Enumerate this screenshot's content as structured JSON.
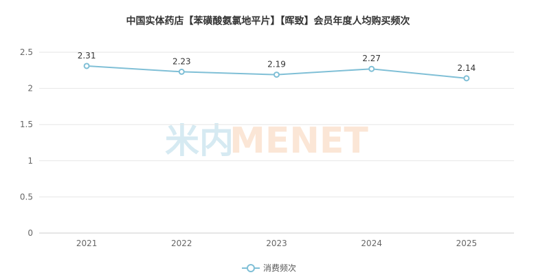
{
  "title": "中国实体药店【苯磺酸氨氯地平片】【晖致】会员年度人均购买频次",
  "watermark": {
    "cn": "米内",
    "en": "MENET"
  },
  "colors": {
    "series": "#7fbfd6",
    "grid": "#e6e6e6",
    "axis": "#cccccc",
    "watermark_cn": "#d6eaf2",
    "watermark_en": "#fbe6d6"
  },
  "chart_data": {
    "type": "line",
    "title": "中国实体药店【苯磺酸氨氯地平片】【晖致】会员年度人均购买频次",
    "categories": [
      "2021",
      "2022",
      "2023",
      "2024",
      "2025"
    ],
    "series": [
      {
        "name": "消费频次",
        "values": [
          2.31,
          2.23,
          2.19,
          2.27,
          2.14
        ],
        "labels": [
          "2.31",
          "2.23",
          "2.19",
          "2.27",
          "2.14"
        ]
      }
    ],
    "y_ticks": [
      "0",
      "0.5",
      "1",
      "1.5",
      "2",
      "2.5"
    ],
    "ylim": [
      0,
      2.5
    ],
    "grid": true,
    "legend": "bottom-center"
  }
}
